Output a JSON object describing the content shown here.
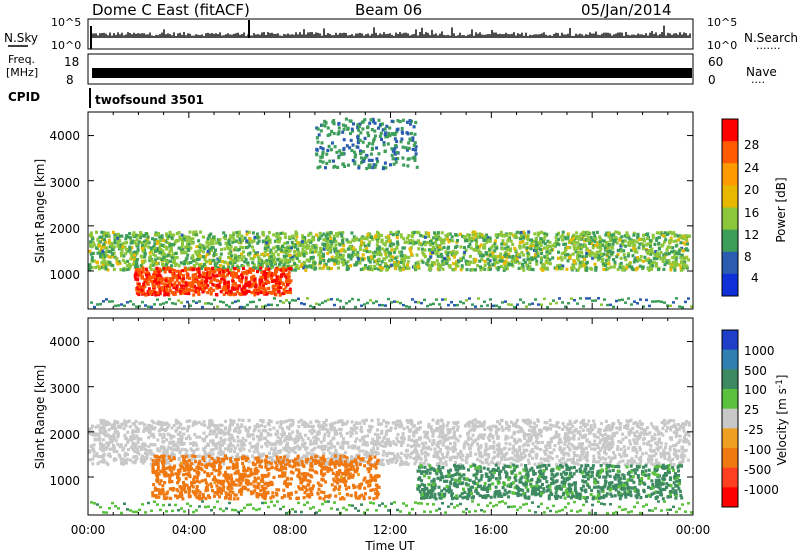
{
  "header": {
    "station": "Dome C East (fitACF)",
    "beam": "Beam 06",
    "date": "05/Jan/2014"
  },
  "sky_panel": {
    "left_label": "N.Sky",
    "left_ticks": [
      "10^5",
      "10^0"
    ],
    "right_ticks": [
      "10^5",
      "10^0"
    ],
    "right_label": "N.Search",
    "right_label_dots": "·······"
  },
  "freq_panel": {
    "left_label_line1": "Freq.",
    "left_label_line2": "[MHz]",
    "left_ticks": [
      "18",
      "8"
    ],
    "right_ticks": [
      "60",
      "0"
    ],
    "right_label": "Nave",
    "right_label_dots": "····"
  },
  "cpid_panel": {
    "label": "CPID",
    "program": "twofsound 3501"
  },
  "power_panel": {
    "ylabel": "Slant Range [km]",
    "yticks": [
      "4000",
      "3000",
      "2000",
      "1000"
    ],
    "cbar_label": "Power [dB]",
    "cbar_ticks": [
      "28",
      "24",
      "20",
      "16",
      "12",
      "8",
      "4"
    ],
    "cbar_colors": [
      "#ff0000",
      "#ff5a00",
      "#ff9b00",
      "#e8b800",
      "#8cc63a",
      "#3d9e5a",
      "#2a5db0",
      "#0f2fd8"
    ]
  },
  "velocity_panel": {
    "ylabel": "Slant Range [km]",
    "yticks": [
      "4000",
      "3000",
      "2000",
      "1000"
    ],
    "cbar_label": "Velocity [m s",
    "cbar_label_sup": "-1",
    "cbar_label_end": "]",
    "cbar_ticks": [
      "1000",
      "500",
      "100",
      "25",
      "-25",
      "-100",
      "-500",
      "-1000"
    ],
    "cbar_colors": [
      "#1f3fc8",
      "#2f7fb0",
      "#3d8a62",
      "#5ac23c",
      "#c8c8c8",
      "#f0a020",
      "#f07810",
      "#ff4020",
      "#ff0000"
    ]
  },
  "xaxis": {
    "label": "Time UT",
    "ticks": [
      "00:00",
      "04:00",
      "08:00",
      "12:00",
      "16:00",
      "20:00",
      "00:00"
    ]
  },
  "chart_data": [
    {
      "type": "heatmap",
      "title": "Power [dB]",
      "xlabel": "Time UT",
      "ylabel": "Slant Range [km]",
      "x_range_hours": [
        0,
        24
      ],
      "ylim": [
        180,
        4500
      ],
      "color_range": [
        0,
        30
      ],
      "scatter_bands": [
        {
          "start_h": 0.0,
          "end_h": 23.8,
          "range_min_km": 1050,
          "range_max_km": 1900,
          "dominant_power_db": 12
        },
        {
          "start_h": 1.8,
          "end_h": 8.0,
          "range_min_km": 500,
          "range_max_km": 1100,
          "dominant_power_db": 26
        },
        {
          "start_h": 9.0,
          "end_h": 13.0,
          "range_min_km": 3300,
          "range_max_km": 4400,
          "dominant_power_db": 8
        }
      ]
    },
    {
      "type": "heatmap",
      "title": "Velocity [m s-1]",
      "xlabel": "Time UT",
      "ylabel": "Slant Range [km]",
      "x_range_hours": [
        0,
        24
      ],
      "ylim": [
        180,
        4500
      ],
      "color_range": [
        -1000,
        1000
      ],
      "scatter_bands": [
        {
          "start_h": 0.0,
          "end_h": 23.8,
          "range_min_km": 1300,
          "range_max_km": 2300,
          "dominant_velocity": 0
        },
        {
          "start_h": 2.5,
          "end_h": 11.5,
          "range_min_km": 550,
          "range_max_km": 1500,
          "dominant_velocity": -150
        },
        {
          "start_h": 13.0,
          "end_h": 23.5,
          "range_min_km": 550,
          "range_max_km": 1300,
          "dominant_velocity": 120
        }
      ]
    }
  ]
}
